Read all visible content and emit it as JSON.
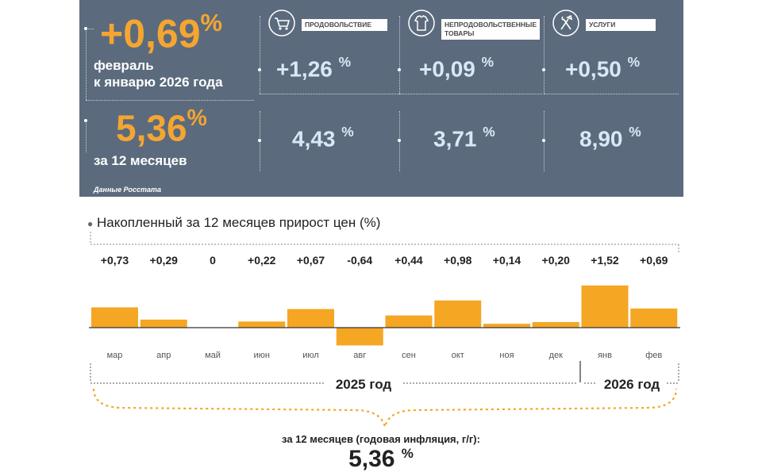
{
  "header": {
    "monthly_value": "+0,69",
    "monthly_percent": "%",
    "monthly_caption_line1": "февраль",
    "monthly_caption_line2": "к январю 2026 года",
    "annual_value": "5,36",
    "annual_percent": "%",
    "annual_caption": "за 12 месяцев",
    "source": "Данные Росстата"
  },
  "categories": [
    {
      "name": "ПРОДОВОЛЬСТВИЕ",
      "icon": "shopping-cart-icon",
      "monthly": "+1,26",
      "annual": "4,43",
      "percent": "%"
    },
    {
      "name": "НЕПРОДОВОЛЬСТВЕННЫЕ ТОВАРЫ",
      "icon": "clothing-icon",
      "monthly": "+0,09",
      "annual": "3,71",
      "percent": "%"
    },
    {
      "name": "УСЛУГИ",
      "icon": "tools-icon",
      "monthly": "+0,50",
      "annual": "8,90",
      "percent": "%"
    }
  ],
  "chart_data": {
    "type": "bar",
    "title": "Накопленный за 12 месяцев прирост цен (%)",
    "categories": [
      "мар",
      "апр",
      "май",
      "июн",
      "июл",
      "авг",
      "сен",
      "окт",
      "ноя",
      "дек",
      "янв",
      "фев"
    ],
    "values": [
      0.73,
      0.29,
      0,
      0.22,
      0.67,
      -0.64,
      0.44,
      0.98,
      0.14,
      0.2,
      1.52,
      0.69
    ],
    "value_labels": [
      "+0,73",
      "+0,29",
      "0",
      "+0,22",
      "+0,67",
      "-0,64",
      "+0,44",
      "+0,98",
      "+0,14",
      "+0,20",
      "+1,52",
      "+0,69"
    ],
    "years": [
      "2025 год",
      "2026 год"
    ],
    "bar_color": "#f5a623",
    "summary_caption": "за 12 месяцев (годовая инфляция, г/г):",
    "summary_value": "5,36",
    "summary_percent": "%"
  },
  "colors": {
    "panel": "#5b6b7d",
    "accent": "#f5a531",
    "value_light": "#d8e8f6"
  }
}
